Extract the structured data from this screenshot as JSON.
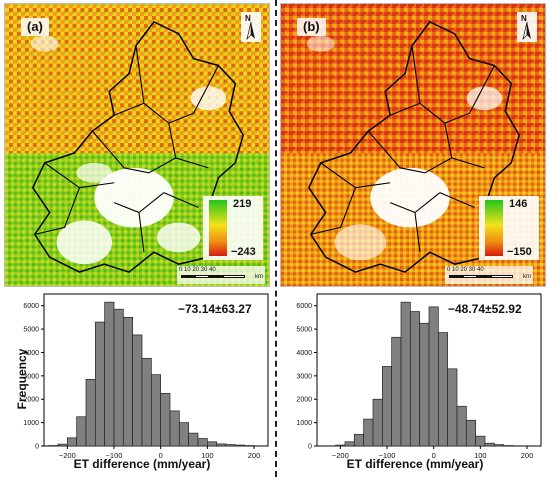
{
  "panels": {
    "a": {
      "tag": "(a)",
      "legend": {
        "max": "219",
        "min": "−243"
      },
      "scale": {
        "ticks": "0   10  20   30  40",
        "unit": "km"
      },
      "stat": "−73.14±63.27"
    },
    "b": {
      "tag": "(b)",
      "legend": {
        "max": "146",
        "min": "−150"
      },
      "scale": {
        "ticks": "0   10  20   30  40",
        "unit": "km"
      },
      "stat": "−48.74±52.92"
    }
  },
  "north_label": "N",
  "ylabel": "Frequency",
  "colors": {
    "green": "#22c51a",
    "yellow": "#f2e21a",
    "orange": "#f08a12",
    "red": "#d81b10",
    "bar": "#808080"
  },
  "chart_data": [
    {
      "type": "bar",
      "xlabel": "ET difference (mm/year)",
      "ylabel": "Frequency",
      "xlim": [
        -250,
        230
      ],
      "ylim": [
        0,
        6500
      ],
      "xticks": [
        -200,
        -100,
        0,
        100,
        200
      ],
      "yticks": [
        0,
        1000,
        2000,
        3000,
        4000,
        5000,
        6000
      ],
      "bin_width": 20,
      "bin_starts": [
        -240,
        -220,
        -200,
        -180,
        -160,
        -140,
        -120,
        -100,
        -80,
        -60,
        -40,
        -20,
        0,
        20,
        40,
        60,
        80,
        100,
        120,
        140,
        160,
        180
      ],
      "values": [
        20,
        80,
        350,
        1250,
        2850,
        5300,
        6150,
        5850,
        5500,
        4750,
        3750,
        3050,
        2250,
        1500,
        1000,
        550,
        320,
        180,
        90,
        60,
        40,
        20
      ]
    },
    {
      "type": "bar",
      "xlabel": "ET difference (mm/year)",
      "ylabel": "",
      "xlim": [
        -250,
        230
      ],
      "ylim": [
        0,
        6500
      ],
      "xticks": [
        -200,
        -100,
        0,
        100,
        200
      ],
      "yticks": [
        0,
        1000,
        2000,
        3000,
        4000,
        5000,
        6000
      ],
      "bin_width": 20,
      "bin_starts": [
        -210,
        -190,
        -170,
        -150,
        -130,
        -110,
        -90,
        -70,
        -50,
        -30,
        -10,
        10,
        30,
        50,
        70,
        90,
        110,
        130,
        150
      ],
      "values": [
        40,
        180,
        500,
        1150,
        2000,
        3400,
        4650,
        6150,
        5750,
        5250,
        5950,
        4850,
        3300,
        1700,
        1100,
        420,
        120,
        60,
        20
      ]
    }
  ]
}
